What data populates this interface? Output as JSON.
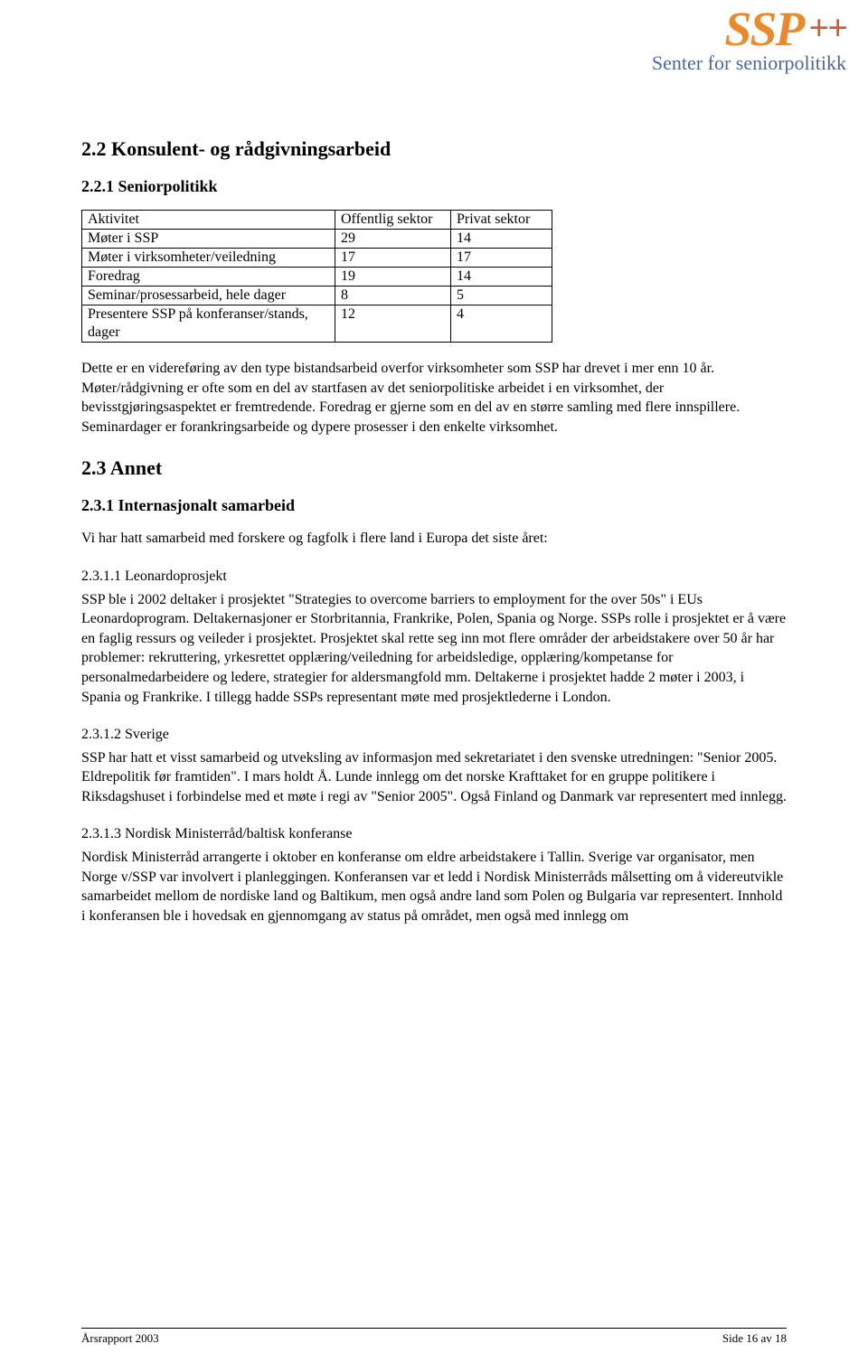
{
  "logo": {
    "main": "SSP",
    "plus": "++",
    "sub": "Senter for seniorpolitikk"
  },
  "h2_1": "2.2  Konsulent- og rådgivningsarbeid",
  "h3_1": "2.2.1 Seniorpolitikk",
  "table": {
    "col_widths": [
      "280px",
      "128px",
      "112px"
    ],
    "header": [
      "Aktivitet",
      "Offentlig sektor",
      "Privat sektor"
    ],
    "rows": [
      [
        "Møter i SSP",
        "29",
        "14"
      ],
      [
        "Møter i virksomheter/veiledning",
        "17",
        "17"
      ],
      [
        "Foredrag",
        "19",
        "14"
      ],
      [
        "Seminar/prosessarbeid, hele dager",
        "8",
        "5"
      ],
      [
        "Presentere SSP på konferanser/stands, dager",
        "12",
        "4"
      ]
    ]
  },
  "p1": "Dette er en videreføring av den type bistandsarbeid overfor virksomheter som SSP har drevet i mer enn 10 år. Møter/rådgivning er ofte som en del av startfasen av det seniorpolitiske arbeidet i en virksomhet, der bevisstgjøringsaspektet er fremtredende. Foredrag er gjerne som en del av en større samling med flere innspillere. Seminardager er forankringsarbeide og dypere prosesser i den enkelte virksomhet.",
  "h2_2": "2.3  Annet",
  "h3_2": "2.3.1 Internasjonalt samarbeid",
  "p2": "Vi har hatt samarbeid med forskere og fagfolk i flere land i Europa det siste året:",
  "sub1_h": "2.3.1.1 Leonardoprosjekt",
  "sub1_p": "SSP ble i 2002 deltaker i prosjektet \"Strategies to overcome barriers to employment for the over 50s\" i EUs Leonardoprogram. Deltakernasjoner er Storbritannia, Frankrike, Polen, Spania og Norge. SSPs rolle i prosjektet er å være en faglig ressurs og veileder i prosjektet. Prosjektet skal rette seg inn mot flere områder der arbeidstakere over 50 år har problemer: rekruttering, yrkesrettet opplæring/veiledning for arbeidsledige, opplæring/kompetanse for personalmedarbeidere og ledere, strategier for aldersmangfold mm. Deltakerne i prosjektet hadde 2 møter i 2003, i Spania og Frankrike. I tillegg hadde SSPs representant møte med prosjektlederne i London.",
  "sub2_h": "2.3.1.2 Sverige",
  "sub2_p": "SSP har hatt et visst samarbeid og utveksling av informasjon  med sekretariatet i den svenske utredningen: \"Senior 2005. Eldrepolitik før framtiden\". I mars holdt Å. Lunde innlegg om det norske Krafttaket for en gruppe politikere i Riksdagshuset i forbindelse med et møte i regi av \"Senior 2005\". Også Finland og Danmark var representert med innlegg.",
  "sub3_h": "2.3.1.3 Nordisk Ministerråd/baltisk konferanse",
  "sub3_p": "Nordisk Ministerråd arrangerte i oktober en konferanse om eldre arbeidstakere i Tallin. Sverige var organisator, men Norge v/SSP var involvert i planleggingen. Konferansen var et ledd i Nordisk Ministerråds målsetting om å videreutvikle samarbeidet mellom de nordiske land og Baltikum, men også andre land som Polen og Bulgaria var representert. Innhold i konferansen ble i hovedsak en gjennomgang av status på området, men også med innlegg om",
  "footer": {
    "left": "Årsrapport 2003",
    "right": "Side 16 av 18"
  }
}
